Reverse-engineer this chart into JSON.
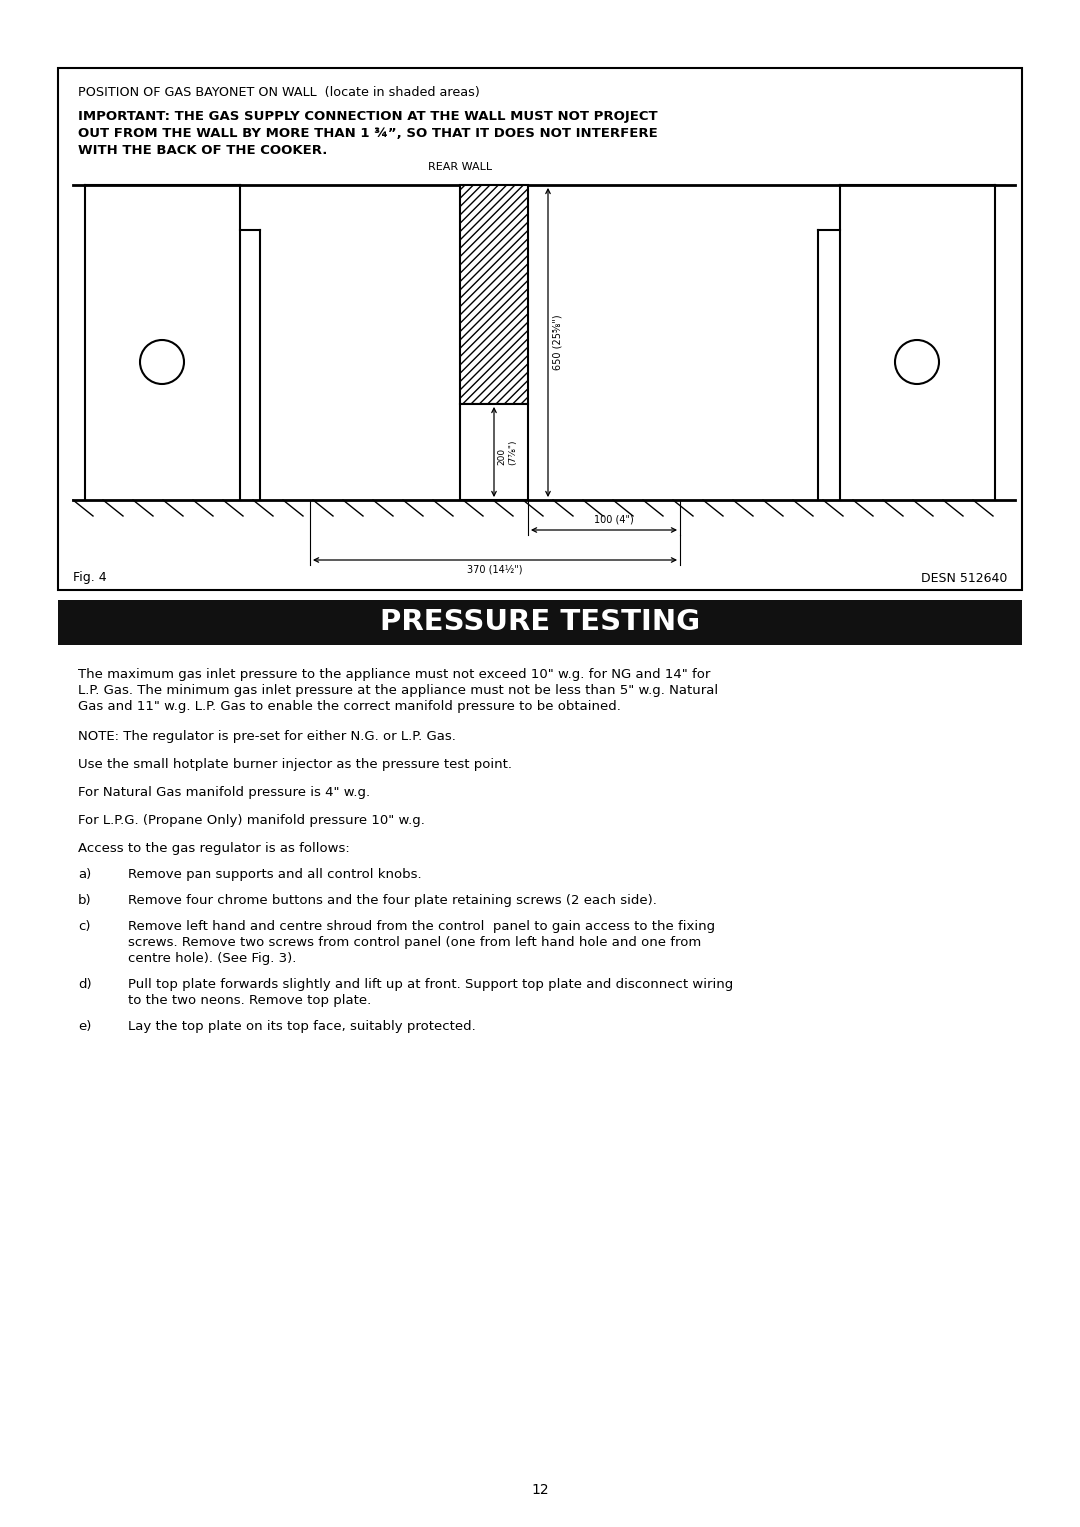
{
  "page_bg": "#ffffff",
  "box_title": "POSITION OF GAS BAYONET ON WALL  (locate in shaded areas)",
  "important_line1": "IMPORTANT: THE GAS SUPPLY CONNECTION AT THE WALL MUST NOT PROJECT",
  "important_line2": "OUT FROM THE WALL BY MORE THAN 1 ¾”, SO THAT IT DOES NOT INTERFERE",
  "important_line3": "WITH THE BACK OF THE COOKER.",
  "rear_wall_label": "REAR WALL",
  "dim1": "650 (25⅝\")",
  "dim2": "200\n(7⅞\")",
  "dim3": "100 (4\")",
  "dim4": "370 (14½\")",
  "fig_label": "Fig. 4",
  "desn_label": "DESN 512640",
  "section_title": "PRESSURE TESTING",
  "section_bg": "#111111",
  "section_fg": "#ffffff",
  "para1": "The maximum gas inlet pressure to the appliance must not exceed 10\" w.g. for NG and 14\" for\nL.P. Gas. The minimum gas inlet pressure at the appliance must not be less than 5\" w.g. Natural\nGas and 11\" w.g. L.P. Gas to enable the correct manifold pressure to be obtained.",
  "para2": "NOTE: The regulator is pre-set for either N.G. or L.P. Gas.",
  "para3": "Use the small hotplate burner injector as the pressure test point.",
  "para4": "For Natural Gas manifold pressure is 4\" w.g.",
  "para5": "For L.P.G. (Propane Only) manifold pressure 10\" w.g.",
  "para6": "Access to the gas regulator is as follows:",
  "list_a": "Remove pan supports and all control knobs.",
  "list_b": "Remove four chrome buttons and the four plate retaining screws (2 each side).",
  "list_c": "Remove left hand and centre shroud from the control  panel to gain access to the fixing\nscrews. Remove two screws from control panel (one from left hand hole and one from\ncentre hole). (See Fig. 3).",
  "list_d": "Pull top plate forwards slightly and lift up at front. Support top plate and disconnect wiring\nto the two neons. Remove top plate.",
  "list_e": "Lay the top plate on its top face, suitably protected.",
  "page_number": "12"
}
